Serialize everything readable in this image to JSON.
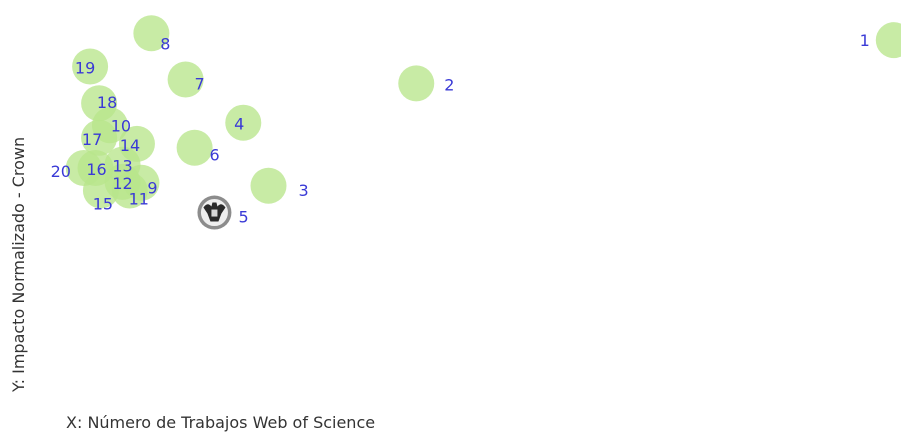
{
  "chart_data": {
    "type": "scatter",
    "xlabel": "X: Número de Trabajos Web of Science",
    "ylabel": "Y: Impacto Normalizado - Crown",
    "xlim": [
      0,
      100
    ],
    "ylim": [
      0,
      100
    ],
    "grid": false,
    "highlight_point": "5",
    "colors": {
      "bubble": "#b8e58c",
      "label": "#3a3ad6",
      "axis_text": "#333333",
      "emblem_outer": "#8c8c8c",
      "emblem_inner": "#eeeeee",
      "emblem_eagle": "#2a2a2a"
    },
    "points": [
      {
        "label": "1",
        "x": 99.2,
        "y": 90.7
      },
      {
        "label": "2",
        "x": 46.2,
        "y": 80.7
      },
      {
        "label": "3",
        "x": 29.8,
        "y": 57.0
      },
      {
        "label": "4",
        "x": 27.0,
        "y": 71.6
      },
      {
        "label": "5",
        "x": 23.8,
        "y": 50.8
      },
      {
        "label": "6",
        "x": 21.6,
        "y": 65.8
      },
      {
        "label": "7",
        "x": 20.6,
        "y": 81.6
      },
      {
        "label": "8",
        "x": 16.8,
        "y": 92.3
      },
      {
        "label": "9",
        "x": 15.7,
        "y": 57.7
      },
      {
        "label": "10",
        "x": 12.2,
        "y": 71.0
      },
      {
        "label": "11",
        "x": 14.4,
        "y": 55.9
      },
      {
        "label": "12",
        "x": 13.6,
        "y": 57.9
      },
      {
        "label": "13",
        "x": 13.6,
        "y": 61.9
      },
      {
        "label": "14",
        "x": 15.2,
        "y": 66.7
      },
      {
        "label": "15",
        "x": 11.2,
        "y": 55.9
      },
      {
        "label": "16",
        "x": 10.6,
        "y": 61.1
      },
      {
        "label": "17",
        "x": 11.0,
        "y": 68.1
      },
      {
        "label": "18",
        "x": 11.0,
        "y": 76.1
      },
      {
        "label": "19",
        "x": 10.0,
        "y": 84.6
      },
      {
        "label": "20",
        "x": 9.3,
        "y": 61.1
      }
    ]
  }
}
